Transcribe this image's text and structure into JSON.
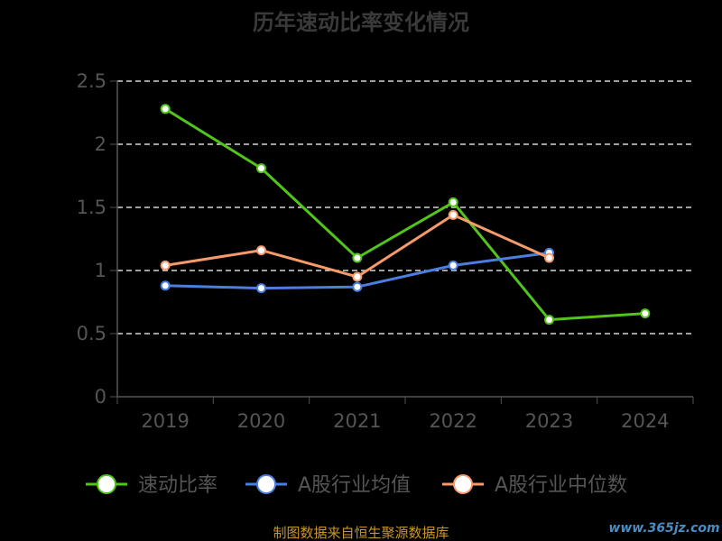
{
  "chart_data": {
    "type": "line",
    "title": "历年速动比率变化情况",
    "categories": [
      "2019",
      "2020",
      "2021",
      "2022",
      "2023",
      "2024"
    ],
    "ylim": [
      0,
      2.5
    ],
    "yticks": [
      "0",
      "0.5",
      "1",
      "1.5",
      "2",
      "2.5"
    ],
    "grid": true,
    "legend_position": "bottom",
    "series": [
      {
        "name": "速动比率",
        "color": "#52c41a",
        "values": [
          2.28,
          1.81,
          1.1,
          1.54,
          0.61,
          0.66
        ]
      },
      {
        "name": "A股行业均值",
        "color": "#4a7fe0",
        "values": [
          0.88,
          0.86,
          0.87,
          1.04,
          1.14,
          null
        ]
      },
      {
        "name": "A股行业中位数",
        "color": "#f59a6a",
        "values": [
          1.04,
          1.16,
          0.95,
          1.44,
          1.1,
          null
        ]
      }
    ]
  },
  "source_text": "制图数据来自恒生聚源数据库",
  "watermark_text": "www.365jz.com"
}
